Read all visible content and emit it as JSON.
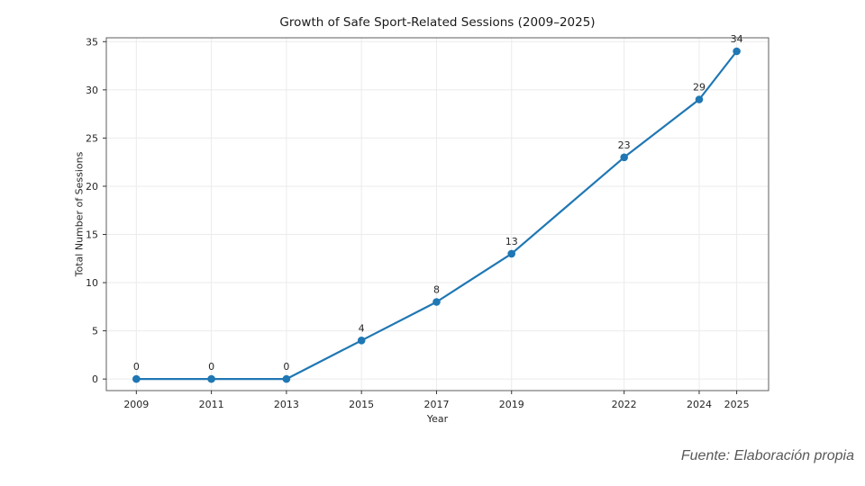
{
  "figure": {
    "source_note": "Fuente: Elaboración propia"
  },
  "chart_data": {
    "type": "line",
    "title": "Growth of Safe Sport-Related Sessions (2009–2025)",
    "xlabel": "Year",
    "ylabel": "Total Number of Sessions",
    "x": [
      2009,
      2011,
      2013,
      2015,
      2017,
      2019,
      2022,
      2024,
      2025
    ],
    "x_tick_labels": [
      "2009",
      "2011",
      "2013",
      "2015",
      "2017",
      "2019",
      "2022",
      "2024",
      "2025"
    ],
    "y_ticks": [
      0,
      5,
      10,
      15,
      20,
      25,
      30,
      35
    ],
    "y_tick_labels": [
      "0",
      "5",
      "10",
      "15",
      "20",
      "25",
      "30",
      "35"
    ],
    "series": [
      {
        "name": "Total Number of Sessions",
        "values": [
          0,
          0,
          0,
          4,
          8,
          13,
          23,
          29,
          34
        ],
        "point_labels": [
          "0",
          "0",
          "0",
          "4",
          "8",
          "13",
          "23",
          "29",
          "34"
        ],
        "color": "#1f77b4",
        "marker": "circle"
      }
    ],
    "xlim": [
      2008.2,
      2025.85
    ],
    "ylim": [
      -1.2,
      35.4
    ],
    "grid": true,
    "legend": "none",
    "colors": {
      "line": "#1f77b4",
      "grid": "#ebebeb",
      "spine": "#5c5c5c",
      "tick": "#333333",
      "text": "#262626",
      "source_text": "#595959"
    }
  }
}
